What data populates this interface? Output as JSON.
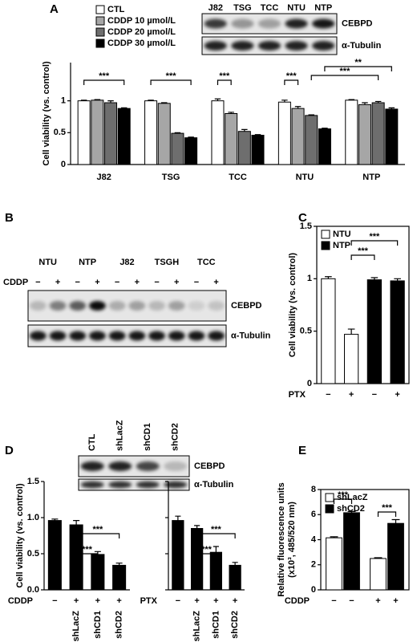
{
  "panels": [
    "A",
    "B",
    "C",
    "D",
    "E"
  ],
  "blots": [
    {
      "lanes": [
        "J82",
        "TSG",
        "TCC",
        "NTU",
        "NTP"
      ],
      "bands": [
        "CEBPD",
        "α-Tubulin"
      ]
    },
    {
      "lanes": [
        "NTU",
        "NTP",
        "J82",
        "TSGH",
        "TCC"
      ],
      "treatment_label": "CDDP",
      "treatment": [
        "−",
        "+",
        "−",
        "+",
        "−",
        "+",
        "−",
        "+",
        "−",
        "+"
      ],
      "bands": [
        "CEBPD",
        "α-Tubulin"
      ]
    },
    {
      "lanes": [
        "CTL",
        "shLacZ",
        "shCD1",
        "shCD2"
      ],
      "bands": [
        "CEBPD",
        "α-Tubulin"
      ]
    }
  ],
  "chart_data": [
    {
      "type": "bar",
      "ylabel": "Cell viability (vs. control)",
      "categories": [
        "J82",
        "TSG",
        "TCC",
        "NTU",
        "NTP"
      ],
      "series": [
        {
          "name": "CTL",
          "color": "#ffffff",
          "values": [
            1,
            1,
            1,
            0.98,
            1.01
          ],
          "errors": [
            0.01,
            0.01,
            0.03,
            0.03,
            0.01
          ]
        },
        {
          "name": "CDDP 10 µmol/L",
          "color": "#a6a6a6",
          "values": [
            1.01,
            0.96,
            0.8,
            0.88,
            0.94
          ],
          "errors": [
            0.01,
            0.01,
            0.02,
            0.03,
            0.03
          ]
        },
        {
          "name": "CDDP 20 µmol/L",
          "color": "#6e6e6e",
          "values": [
            0.97,
            0.49,
            0.52,
            0.77,
            0.97
          ],
          "errors": [
            0.03,
            0.01,
            0.03,
            0.01,
            0.02
          ]
        },
        {
          "name": "CDDP 30 µmol/L",
          "color": "#000000",
          "values": [
            0.88,
            0.42,
            0.46,
            0.56,
            0.87
          ],
          "errors": [
            0.01,
            0.01,
            0.01,
            0.01,
            0.02
          ]
        }
      ],
      "ylim": [
        0,
        1.6
      ],
      "yticks": [
        0,
        0.5,
        1
      ],
      "annotations": [
        "***",
        "***",
        "***",
        "***",
        "**",
        "***"
      ],
      "legend": "outside-top-left"
    },
    {
      "type": "bar",
      "ylabel": "Cell viability (vs. control)",
      "xlabel": "PTX",
      "bar_order": "series",
      "categories": [
        "−",
        "+"
      ],
      "series": [
        {
          "name": "NTU",
          "color": "#ffffff",
          "values": [
            1.0,
            0.47
          ],
          "errors": [
            0.02,
            0.05
          ]
        },
        {
          "name": "NTP",
          "color": "#000000",
          "values": [
            0.99,
            0.98
          ],
          "errors": [
            0.02,
            0.02
          ]
        }
      ],
      "ylim": [
        0,
        1.5
      ],
      "yticks": [
        0,
        0.5,
        1,
        1.5
      ],
      "frame": true,
      "annotations": [
        "***",
        "***"
      ],
      "legend": "top-left"
    },
    {
      "type": "bar",
      "ylabel": "Cell viability (vs. control)",
      "xlabel": "CDDP",
      "treatment": [
        "−",
        "+",
        "+",
        "+"
      ],
      "categories": [
        null,
        "shLacZ",
        "shCD1",
        "shCD2"
      ],
      "values": [
        0.96,
        0.9,
        0.49,
        0.34
      ],
      "errors": [
        0.02,
        0.06,
        0.04,
        0.03
      ],
      "color": "#000000",
      "ylim": [
        0,
        1.5
      ],
      "yticks": [
        {
          "value": 0,
          "label": "0.0"
        },
        {
          "value": 0.5,
          "label": "0.5"
        },
        {
          "value": 1,
          "label": "1.0"
        },
        {
          "value": 1.5,
          "label": "1.5"
        }
      ],
      "annotations": [
        "***",
        "***"
      ]
    },
    {
      "type": "bar",
      "xlabel": "PTX",
      "treatment": [
        "−",
        "+",
        "+",
        "+"
      ],
      "categories": [
        null,
        "shLacZ",
        "shCD1",
        "shCD2"
      ],
      "values": [
        0.96,
        0.85,
        0.52,
        0.34
      ],
      "errors": [
        0.06,
        0.04,
        0.08,
        0.04
      ],
      "color": "#000000",
      "ylim": [
        0,
        1.5
      ],
      "yticks": [
        0,
        0.5,
        1,
        1.5
      ],
      "tick_labels": false,
      "annotations": [
        "***",
        "***"
      ]
    },
    {
      "type": "bar",
      "ylabel": [
        "Relative fluorescence units",
        "(x10³, 485/520 nm)"
      ],
      "xlabel": "CDDP",
      "categories": [
        "−",
        "+"
      ],
      "series": [
        {
          "name": "shLacZ",
          "color": "#ffffff",
          "values": [
            4.15,
            2.5
          ],
          "errors": [
            0.08,
            0.06
          ]
        },
        {
          "name": "shCD2",
          "color": "#000000",
          "values": [
            6.15,
            5.3
          ],
          "errors": [
            0.1,
            0.3
          ]
        }
      ],
      "ylim": [
        0,
        8
      ],
      "yticks": [
        0,
        2,
        4,
        6,
        8
      ],
      "frame": true,
      "annotations": [
        "***",
        "***"
      ],
      "legend": "top-left"
    }
  ]
}
